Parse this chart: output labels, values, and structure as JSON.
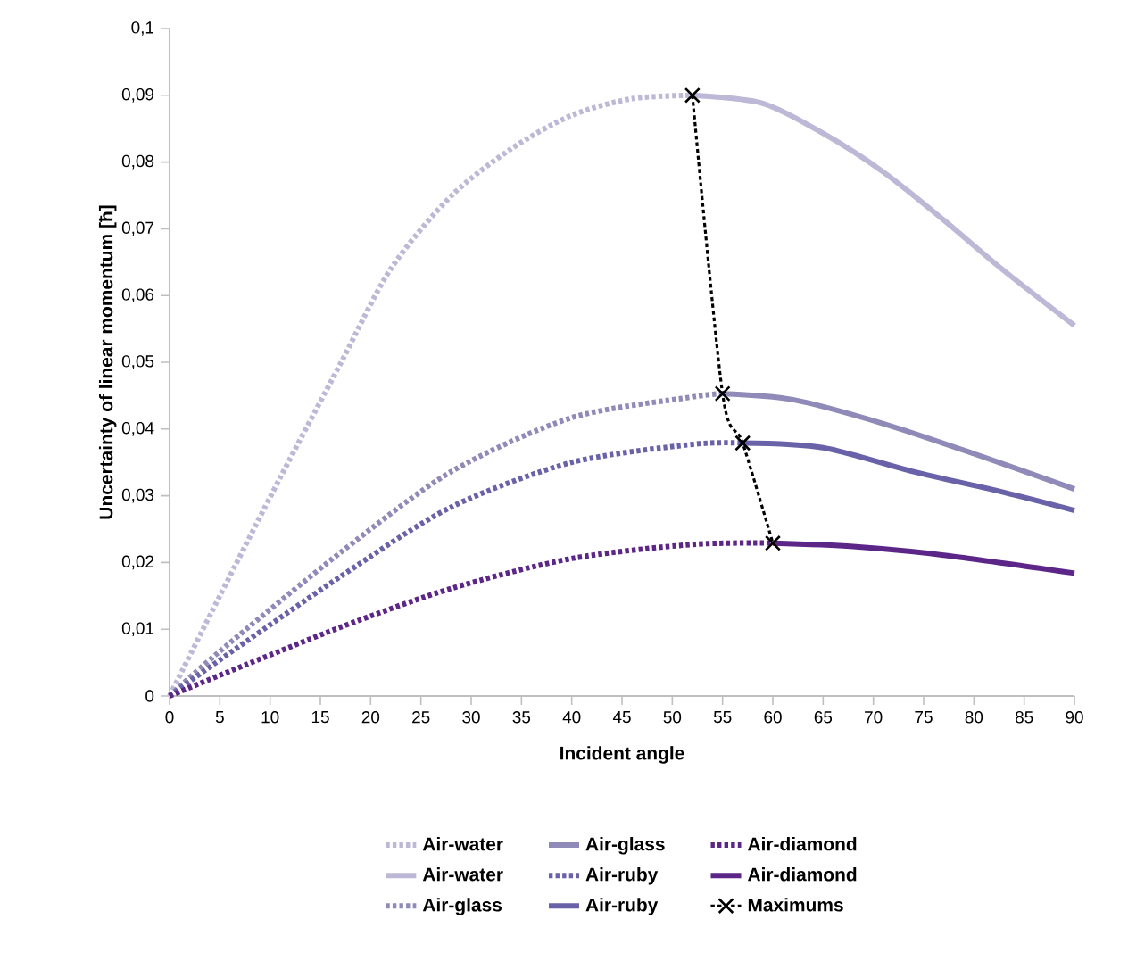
{
  "chart_data": {
    "type": "line",
    "xlabel": "Incident angle",
    "ylabel": "Uncertainty of linear momentum [ħ]",
    "xlim": [
      0,
      90
    ],
    "ylim": [
      0,
      0.1
    ],
    "xticks": [
      0,
      5,
      10,
      15,
      20,
      25,
      30,
      35,
      40,
      45,
      50,
      55,
      60,
      65,
      70,
      75,
      80,
      85,
      90
    ],
    "yticks": [
      0,
      {
        "value": 0.01,
        "label": "0,01"
      },
      {
        "value": 0.02,
        "label": "0,02"
      },
      {
        "value": 0.03,
        "label": "0,03"
      },
      {
        "value": 0.04,
        "label": "0,04"
      },
      {
        "value": 0.05,
        "label": "0,05"
      },
      {
        "value": 0.06,
        "label": "0,06"
      },
      {
        "value": 0.07,
        "label": "0,07"
      },
      {
        "value": 0.08,
        "label": "0,08"
      },
      {
        "value": 0.09,
        "label": "0,09"
      },
      {
        "value": 0.1,
        "label": "0,1"
      }
    ],
    "grid": false,
    "legend": "bottom",
    "marker": "none",
    "series": [
      {
        "name": "Air-water",
        "color": "#bcb8d6",
        "line_style": "dotted",
        "x": [
          0,
          5,
          11,
          17,
          22,
          28,
          34,
          40,
          46,
          52
        ],
        "values": [
          0,
          0.015,
          0.0327,
          0.0498,
          0.064,
          0.0749,
          0.082,
          0.087,
          0.0895,
          0.09
        ]
      },
      {
        "name": "Air-water",
        "color": "#bcb8d6",
        "line_style": "solid",
        "x": [
          52,
          59,
          65,
          71,
          77,
          83,
          90
        ],
        "values": [
          0.09,
          0.0888,
          0.0843,
          0.0785,
          0.0713,
          0.0637,
          0.0555
        ]
      },
      {
        "name": "Air-glass",
        "color": "#8f8ab8",
        "line_style": "dotted",
        "x": [
          0,
          5,
          17,
          28,
          40,
          52,
          55
        ],
        "values": [
          0,
          0.0067,
          0.0215,
          0.0336,
          0.0417,
          0.0448,
          0.0453
        ]
      },
      {
        "name": "Air-glass",
        "color": "#8f8ab8",
        "line_style": "solid",
        "x": [
          55,
          62,
          71,
          80,
          90
        ],
        "values": [
          0.0453,
          0.0444,
          0.0408,
          0.0363,
          0.031
        ]
      },
      {
        "name": "Air-ruby",
        "color": "#6a62a8",
        "line_style": "dotted",
        "x": [
          0,
          5,
          17,
          28,
          40,
          52,
          57
        ],
        "values": [
          0,
          0.0054,
          0.0179,
          0.0283,
          0.035,
          0.0377,
          0.0379
        ]
      },
      {
        "name": "Air-ruby",
        "color": "#6a62a8",
        "line_style": "solid",
        "x": [
          57,
          65,
          74,
          83,
          90
        ],
        "values": [
          0.0379,
          0.0372,
          0.0336,
          0.0305,
          0.0278
        ]
      },
      {
        "name": "Air-diamond",
        "color": "#5c2588",
        "line_style": "dotted",
        "x": [
          0,
          5,
          17,
          28,
          40,
          52,
          60
        ],
        "values": [
          0,
          0.0031,
          0.0103,
          0.0161,
          0.0206,
          0.0227,
          0.0229
        ]
      },
      {
        "name": "Air-diamond",
        "color": "#5c2588",
        "line_style": "solid",
        "x": [
          60,
          68,
          77,
          90
        ],
        "values": [
          0.0229,
          0.0224,
          0.0211,
          0.0184
        ]
      },
      {
        "name": "Maximums",
        "color": "#000000",
        "line_style": "dotted",
        "marker": "cross",
        "x": [
          52,
          55,
          57,
          60
        ],
        "values": [
          0.09,
          0.0453,
          0.0379,
          0.0229
        ]
      }
    ]
  }
}
